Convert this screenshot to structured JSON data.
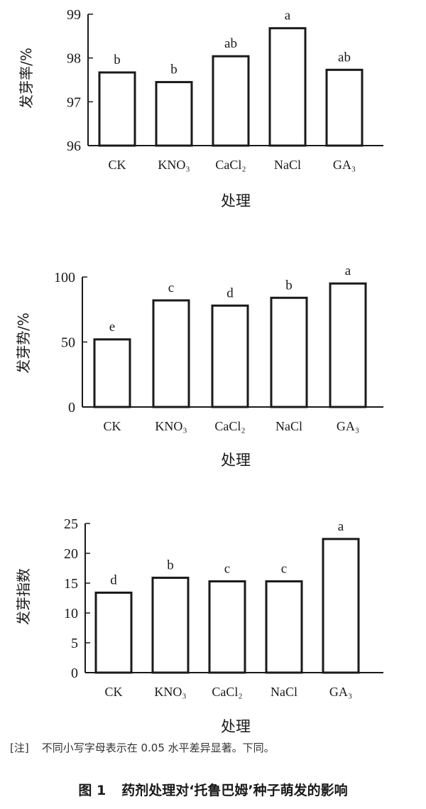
{
  "chart_data": [
    {
      "type": "bar",
      "ylabel": "发芽率/%",
      "xlabel": "处理",
      "ylim": [
        96,
        99
      ],
      "yticks": [
        "96",
        "97",
        "98",
        "99"
      ],
      "categories": [
        "CK",
        "KNO₃",
        "CaCl₂",
        "NaCl",
        "GA₃"
      ],
      "values": [
        97.67,
        97.45,
        98.04,
        98.68,
        97.73
      ],
      "labels": [
        "b",
        "b",
        "ab",
        "a",
        "ab"
      ]
    },
    {
      "type": "bar",
      "ylabel": "发芽势/%",
      "xlabel": "处理",
      "ylim": [
        0,
        100
      ],
      "yticks": [
        "0",
        "50",
        "100"
      ],
      "categories": [
        "CK",
        "KNO₃",
        "CaCl₂",
        "NaCl",
        "GA₃"
      ],
      "values": [
        52,
        82,
        78,
        84,
        95
      ],
      "labels": [
        "e",
        "c",
        "d",
        "b",
        "a"
      ]
    },
    {
      "type": "bar",
      "ylabel": "发芽指数",
      "xlabel": "处理",
      "ylim": [
        0,
        25
      ],
      "yticks": [
        "0",
        "5",
        "10",
        "15",
        "20",
        "25"
      ],
      "categories": [
        "CK",
        "KNO₃",
        "CaCl₂",
        "NaCl",
        "GA₃"
      ],
      "values": [
        13.4,
        15.9,
        15.3,
        15.3,
        22.4
      ],
      "labels": [
        "d",
        "b",
        "c",
        "c",
        "a"
      ]
    }
  ],
  "note": {
    "tag": "[注]",
    "text": "不同小写字母表示在 0.05 水平差异显著。下同。"
  },
  "caption": {
    "number": "图 1",
    "title": "药剂处理对‘托鲁巴姆’种子萌发的影响"
  }
}
